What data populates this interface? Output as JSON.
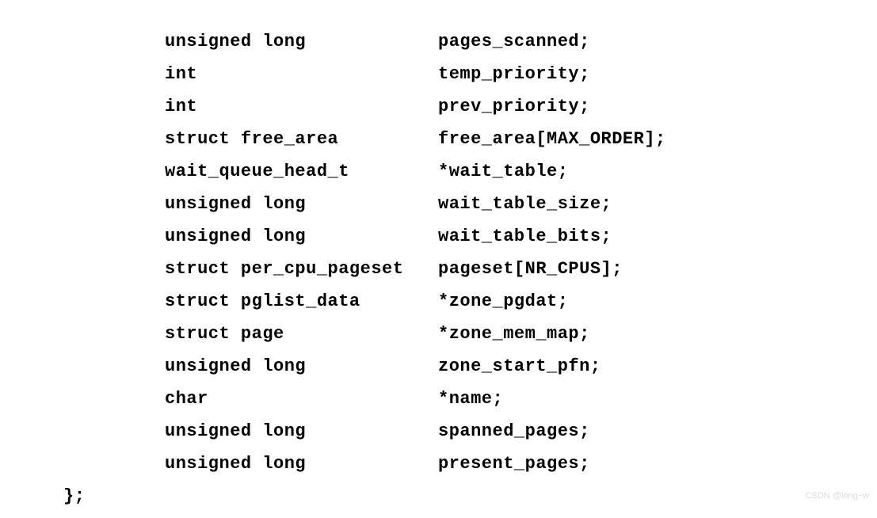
{
  "code": {
    "rows": [
      {
        "type": "unsigned long",
        "field": "pages_scanned;"
      },
      {
        "type": "int",
        "field": "temp_priority;"
      },
      {
        "type": "int",
        "field": "prev_priority;"
      },
      {
        "type": "struct free_area",
        "field": "free_area[MAX_ORDER];"
      },
      {
        "type": "wait_queue_head_t",
        "field": "*wait_table;"
      },
      {
        "type": "unsigned long",
        "field": "wait_table_size;"
      },
      {
        "type": "unsigned long",
        "field": "wait_table_bits;"
      },
      {
        "type": "struct per_cpu_pageset",
        "field": "pageset[NR_CPUS];"
      },
      {
        "type": "struct pglist_data",
        "field": "*zone_pgdat;"
      },
      {
        "type": "struct page",
        "field": "*zone_mem_map;"
      },
      {
        "type": "unsigned long",
        "field": "zone_start_pfn;"
      },
      {
        "type": "char",
        "field": "*name;"
      },
      {
        "type": "unsigned long",
        "field": "spanned_pages;"
      },
      {
        "type": "unsigned long",
        "field": "present_pages;"
      }
    ],
    "closer": "};"
  },
  "watermark": "CSDN @long~w"
}
